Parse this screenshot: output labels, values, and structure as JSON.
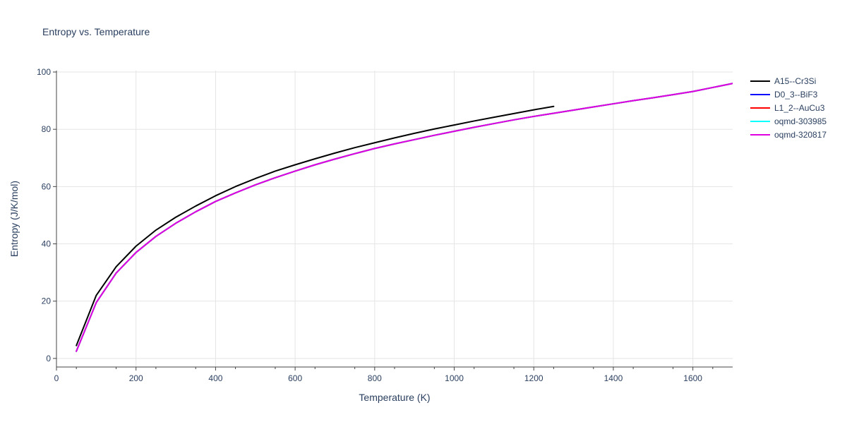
{
  "chart_data": {
    "type": "line",
    "title": "Entropy vs. Temperature",
    "xlabel": "Temperature (K)",
    "ylabel": "Entropy (J/K/mol)",
    "xlim": [
      0,
      1700
    ],
    "ylim": [
      -3,
      100.5
    ],
    "xticks": [
      0,
      200,
      400,
      600,
      800,
      1000,
      1200,
      1400,
      1600
    ],
    "yticks": [
      0,
      20,
      40,
      60,
      80,
      100
    ],
    "grid": true,
    "legend_position": "top-right",
    "colors": {
      "A15--Cr3Si": "#000000",
      "D0_3--BiF3": "#0000ff",
      "L1_2--AuCu3": "#ff0000",
      "oqmd-303985": "#00ffff",
      "oqmd-320817": "#e000e0"
    },
    "series": [
      {
        "name": "A15--Cr3Si",
        "x": [
          50,
          100,
          150,
          200,
          250,
          300,
          350,
          400,
          450,
          500,
          550,
          600,
          650,
          700,
          750,
          800,
          850,
          900,
          950,
          1000,
          1050,
          1100,
          1150,
          1200,
          1250
        ],
        "y": [
          4.5,
          22,
          32,
          39.2,
          44.8,
          49.3,
          53.2,
          56.8,
          60,
          62.8,
          65.4,
          67.6,
          69.7,
          71.7,
          73.6,
          75.3,
          77,
          78.6,
          80.1,
          81.5,
          82.9,
          84.2,
          85.5,
          86.8,
          88
        ]
      },
      {
        "name": "D0_3--BiF3",
        "x": [
          50,
          100,
          150,
          200,
          250,
          300,
          350,
          400,
          450,
          500,
          550,
          600,
          650,
          700,
          750,
          800,
          850,
          900,
          950,
          1000,
          1050,
          1100,
          1150,
          1200,
          1250,
          1300,
          1350,
          1400,
          1450,
          1500,
          1550,
          1600,
          1650,
          1700
        ],
        "y": [
          2.5,
          19.5,
          29.8,
          37,
          42.6,
          47.2,
          51.2,
          54.8,
          57.8,
          60.6,
          63.1,
          65.4,
          67.6,
          69.6,
          71.5,
          73.3,
          74.9,
          76.4,
          77.9,
          79.3,
          80.7,
          82,
          83.3,
          84.5,
          85.6,
          86.7,
          87.8,
          88.9,
          90,
          91,
          92.1,
          93.2,
          94.6,
          96
        ]
      },
      {
        "name": "L1_2--AuCu3",
        "x": [
          50,
          100,
          150,
          200,
          250,
          300,
          350,
          400,
          450,
          500,
          550,
          600,
          650,
          700,
          750,
          800,
          850,
          900,
          950,
          1000,
          1050,
          1100,
          1150,
          1200,
          1250,
          1300,
          1350,
          1400,
          1450,
          1500,
          1550,
          1600,
          1650,
          1700
        ],
        "y": [
          2.5,
          19.5,
          29.8,
          37,
          42.6,
          47.2,
          51.2,
          54.8,
          57.8,
          60.6,
          63.1,
          65.4,
          67.6,
          69.6,
          71.5,
          73.3,
          74.9,
          76.4,
          77.9,
          79.3,
          80.7,
          82,
          83.3,
          84.5,
          85.6,
          86.7,
          87.8,
          88.9,
          90,
          91,
          92.1,
          93.2,
          94.6,
          96
        ]
      },
      {
        "name": "oqmd-303985",
        "x": [
          50,
          100,
          150,
          200,
          250,
          300,
          350,
          400,
          450,
          500,
          550,
          600,
          650,
          700,
          750,
          800,
          850,
          900,
          950,
          1000,
          1050,
          1100,
          1150,
          1200,
          1250,
          1300,
          1350,
          1400,
          1450,
          1500,
          1550,
          1600,
          1650,
          1700
        ],
        "y": [
          2.5,
          19.5,
          29.8,
          37,
          42.6,
          47.2,
          51.2,
          54.8,
          57.8,
          60.6,
          63.1,
          65.4,
          67.6,
          69.6,
          71.5,
          73.3,
          74.9,
          76.4,
          77.9,
          79.3,
          80.7,
          82,
          83.3,
          84.5,
          85.6,
          86.7,
          87.8,
          88.9,
          90,
          91,
          92.1,
          93.2,
          94.6,
          96
        ]
      },
      {
        "name": "oqmd-320817",
        "x": [
          50,
          100,
          150,
          200,
          250,
          300,
          350,
          400,
          450,
          500,
          550,
          600,
          650,
          700,
          750,
          800,
          850,
          900,
          950,
          1000,
          1050,
          1100,
          1150,
          1200,
          1250,
          1300,
          1350,
          1400,
          1450,
          1500,
          1550,
          1600,
          1650,
          1700
        ],
        "y": [
          2.5,
          19.5,
          29.8,
          37,
          42.6,
          47.2,
          51.2,
          54.8,
          57.8,
          60.6,
          63.1,
          65.4,
          67.6,
          69.6,
          71.5,
          73.3,
          74.9,
          76.4,
          77.9,
          79.3,
          80.7,
          82,
          83.3,
          84.5,
          85.6,
          86.7,
          87.8,
          88.9,
          90,
          91,
          92.1,
          93.2,
          94.6,
          96
        ]
      }
    ]
  }
}
